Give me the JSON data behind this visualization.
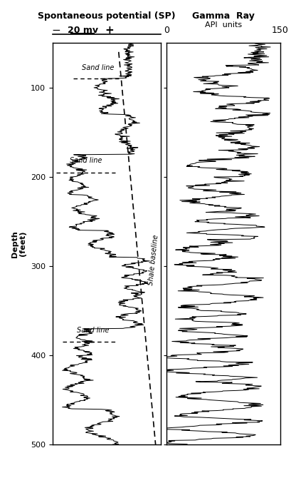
{
  "title_sp": "Spontaneous potential (SP)",
  "title_gr": "Gamma  Ray",
  "subtitle_gr": "API  units",
  "scale_label": "20 mv",
  "sp_minus": "−",
  "sp_plus": "+",
  "gr_left": "0",
  "gr_right": "150",
  "depth_label": "Depth\n(feet)",
  "depth_min": 50,
  "depth_max": 500,
  "depth_ticks": [
    100,
    200,
    300,
    400,
    500
  ],
  "sp_panel_xlim": [
    -1.0,
    0.55
  ],
  "gr_panel_xlim": [
    0,
    150
  ],
  "background": "#ffffff"
}
